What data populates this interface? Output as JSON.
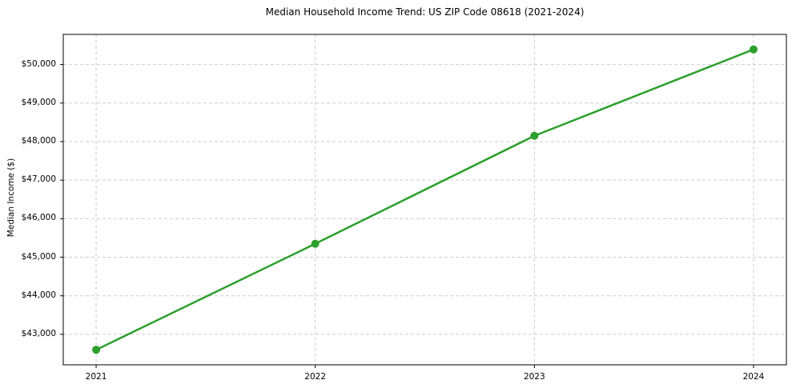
{
  "chart_data": {
    "type": "line",
    "title": "Median Household Income Trend: US ZIP Code 08618 (2021-2024)",
    "xlabel": "",
    "ylabel": "Median Income ($)",
    "x": [
      2021,
      2022,
      2023,
      2024
    ],
    "y": [
      42600,
      45350,
      48150,
      50390
    ],
    "xticks": {
      "values": [
        2021,
        2022,
        2023,
        2024
      ],
      "labels": [
        "2021",
        "2022",
        "2023",
        "2024"
      ]
    },
    "yticks": {
      "values": [
        43000,
        44000,
        45000,
        46000,
        47000,
        48000,
        49000,
        50000
      ],
      "labels": [
        "$43,000",
        "$44,000",
        "$45,000",
        "$46,000",
        "$47,000",
        "$48,000",
        "$49,000",
        "$50,000"
      ]
    },
    "xlim": [
      2020.85,
      2024.15
    ],
    "ylim": [
      42210,
      50780
    ],
    "grid": true,
    "grid_color": "#cdcdcd",
    "grid_style": "dashed",
    "legend": "none",
    "line_color": "#2ca02c",
    "marker_color": "#2ca02c",
    "marker_shape": "circle",
    "line_width": 2.5,
    "marker_radius": 5,
    "spine_color": "#000000",
    "tick_color": "#000000",
    "text_color": "#000000",
    "background_color": "#ffffff"
  }
}
